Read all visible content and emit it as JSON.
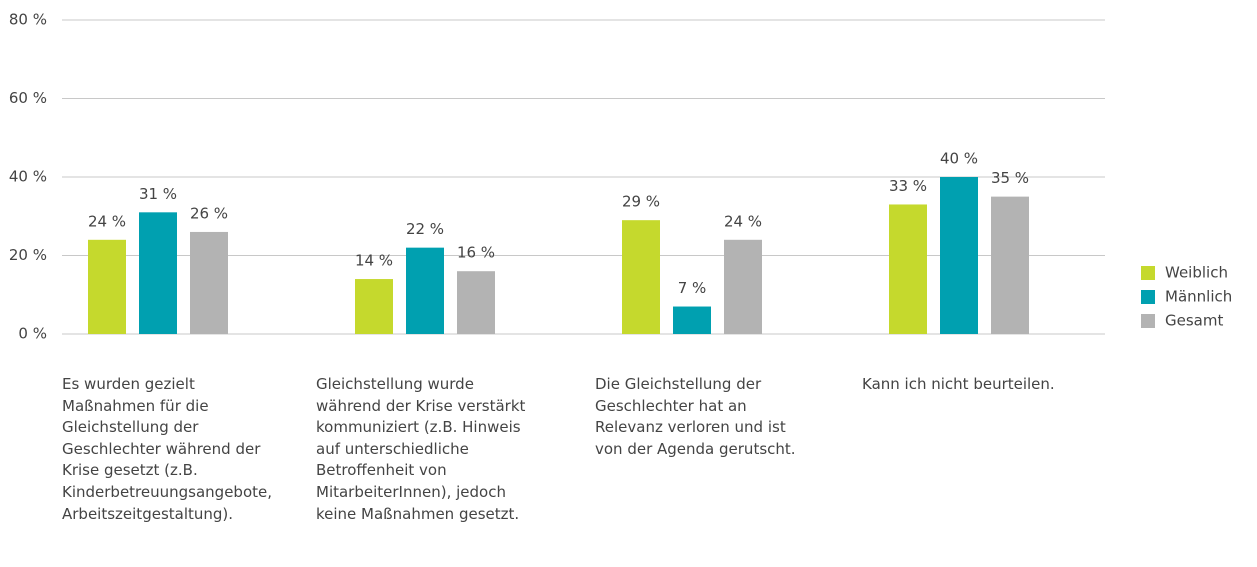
{
  "chart_data": {
    "type": "bar",
    "categories": [
      "Es wurden gezielt Maßnahmen für die Gleichstellung der Geschlechter während der Krise gesetzt (z.B. Kinderbetreuungsangebote, Arbeitszeitgestaltung).",
      "Gleichstellung wurde während der Krise verstärkt kommuniziert (z.B. Hinweis auf unterschiedliche Betroffenheit von MitarbeiterInnen), jedoch keine Maßnahmen gesetzt.",
      "Die Gleichstellung der Geschlechter hat an Relevanz verloren und ist von der Agenda gerutscht.",
      "Kann ich nicht beurteilen."
    ],
    "series": [
      {
        "name": "Weiblich",
        "color": "#c5d92d",
        "values": [
          24,
          14,
          29,
          33
        ],
        "value_labels": [
          "24 %",
          "14 %",
          "29 %",
          "33 %"
        ]
      },
      {
        "name": "Männlich",
        "color": "#00a0b0",
        "values": [
          31,
          22,
          7,
          40
        ],
        "value_labels": [
          "31 %",
          "22 %",
          "7 %",
          "40 %"
        ]
      },
      {
        "name": "Gesamt",
        "color": "#b3b3b3",
        "values": [
          26,
          16,
          24,
          35
        ],
        "value_labels": [
          "26 %",
          "16 %",
          "24 %",
          "35 %"
        ]
      }
    ],
    "ylim": [
      0,
      80
    ],
    "yticks": [
      {
        "value": 0,
        "label": "0 %"
      },
      {
        "value": 20,
        "label": "20 %"
      },
      {
        "value": 40,
        "label": "40 %"
      },
      {
        "value": 60,
        "label": "60 %"
      },
      {
        "value": 80,
        "label": "80 %"
      }
    ],
    "grid": true,
    "legend": "right"
  }
}
